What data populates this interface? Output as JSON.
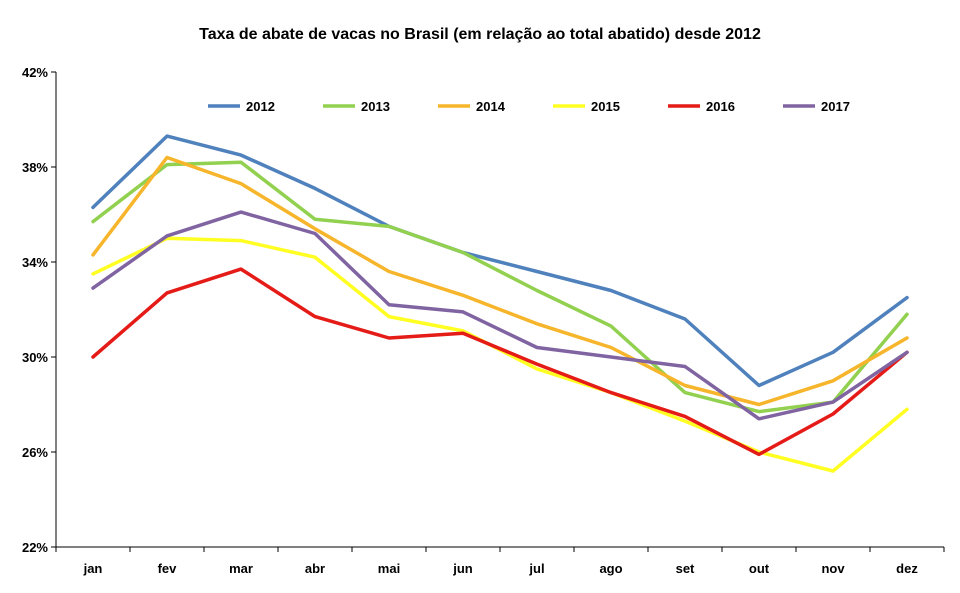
{
  "chart_data": {
    "type": "line",
    "title": "Taxa de abate de vacas no Brasil (em relação ao total abatido) desde 2012",
    "xlabel": "",
    "ylabel": "",
    "categories": [
      "jan",
      "fev",
      "mar",
      "abr",
      "mai",
      "jun",
      "jul",
      "ago",
      "set",
      "out",
      "nov",
      "dez"
    ],
    "ylim": [
      22,
      42
    ],
    "yticks": [
      22,
      26,
      30,
      34,
      38,
      42
    ],
    "ytick_suffix": "%",
    "grid": false,
    "legend_position": "top",
    "series": [
      {
        "name": "2012",
        "color": "#4F81BD",
        "values": [
          36.3,
          39.3,
          38.5,
          37.1,
          35.5,
          34.4,
          33.6,
          32.8,
          31.6,
          28.8,
          30.2,
          32.5
        ]
      },
      {
        "name": "2013",
        "color": "#92D050",
        "values": [
          35.7,
          38.1,
          38.2,
          35.8,
          35.5,
          34.4,
          32.8,
          31.3,
          28.5,
          27.7,
          28.1,
          31.8
        ]
      },
      {
        "name": "2014",
        "color": "#F6B52A",
        "values": [
          34.3,
          38.4,
          37.3,
          35.4,
          33.6,
          32.6,
          31.4,
          30.4,
          28.8,
          28.0,
          29.0,
          30.8
        ]
      },
      {
        "name": "2015",
        "color": "#FFFF22",
        "values": [
          33.5,
          35.0,
          34.9,
          34.2,
          31.7,
          31.1,
          29.5,
          28.5,
          27.3,
          26.0,
          25.2,
          27.8
        ]
      },
      {
        "name": "2016",
        "color": "#E41B17",
        "values": [
          30.0,
          32.7,
          33.7,
          31.7,
          30.8,
          31.0,
          29.7,
          28.5,
          27.5,
          25.9,
          27.6,
          30.2
        ]
      },
      {
        "name": "2017",
        "color": "#8064A2",
        "values": [
          32.9,
          35.1,
          36.1,
          35.2,
          32.2,
          31.9,
          30.4,
          30.0,
          29.6,
          27.4,
          28.1,
          30.2
        ]
      }
    ]
  }
}
